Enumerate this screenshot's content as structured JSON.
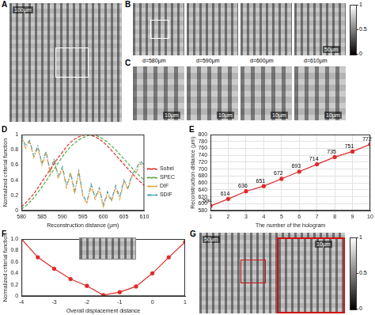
{
  "panels": [
    "A",
    "B",
    "C",
    "D",
    "E",
    "F",
    "G"
  ],
  "images": [
    {
      "panel": "A",
      "scale_bar": "100μm"
    },
    {
      "panel": "B",
      "scale_bar": "50μm"
    },
    {
      "panel": "C",
      "distances": [
        "d=580μm",
        "d=590μm",
        "d=600μm",
        "d=610μm"
      ],
      "scale_bar": "10μm"
    },
    {
      "panel": "G",
      "scale_bars": [
        "50μm",
        "10μm"
      ]
    }
  ],
  "colorbar": {
    "range": [
      0,
      1
    ],
    "ticks": [
      0,
      0.5,
      1
    ]
  },
  "chart_data": [
    {
      "panel": "D",
      "type": "line",
      "xlabel": "Reconstruction distance (μm)",
      "ylabel": "Normalized criterial function",
      "x": [
        580,
        581,
        582,
        583,
        584,
        585,
        586,
        587,
        588,
        589,
        590,
        591,
        592,
        593,
        594,
        595,
        596,
        597,
        598,
        599,
        600,
        601,
        602,
        603,
        604,
        605,
        606,
        607,
        608,
        609,
        610
      ],
      "series": [
        {
          "name": "Sobel",
          "color": "#e02a2a",
          "line_style": "dashed",
          "values": [
            0.05,
            0.1,
            0.16,
            0.22,
            0.3,
            0.38,
            0.46,
            0.54,
            0.62,
            0.7,
            0.77,
            0.84,
            0.9,
            0.94,
            0.97,
            0.99,
            1.0,
            0.99,
            0.97,
            0.94,
            0.9,
            0.85,
            0.79,
            0.73,
            0.67,
            0.61,
            0.55,
            0.49,
            0.43,
            0.38,
            0.33
          ]
        },
        {
          "name": "SPEC",
          "color": "#5aa83c",
          "line_style": "dashed",
          "values": [
            0.02,
            0.06,
            0.11,
            0.17,
            0.24,
            0.31,
            0.39,
            0.47,
            0.55,
            0.63,
            0.71,
            0.78,
            0.84,
            0.89,
            0.93,
            0.96,
            0.98,
            1.0,
            0.99,
            0.97,
            0.94,
            0.9,
            0.85,
            0.8,
            0.74,
            0.68,
            0.62,
            0.56,
            0.5,
            0.45,
            0.4
          ]
        },
        {
          "name": "DIF",
          "color": "#f0a040",
          "line_style": "dashdot",
          "values": [
            0.95,
            0.82,
            0.9,
            0.7,
            0.82,
            0.6,
            0.75,
            0.5,
            0.65,
            0.42,
            0.55,
            0.3,
            0.48,
            0.22,
            0.5,
            0.18,
            0.1,
            0.32,
            0.15,
            0.28,
            0.05,
            0.22,
            0.12,
            0.3,
            0.15,
            0.38,
            0.28,
            0.45,
            0.5,
            0.62,
            0.55
          ]
        },
        {
          "name": "SDIF",
          "color": "#3a9fb0",
          "line_style": "dashdot",
          "values": [
            1.0,
            0.85,
            0.92,
            0.72,
            0.85,
            0.62,
            0.78,
            0.52,
            0.68,
            0.45,
            0.58,
            0.33,
            0.5,
            0.25,
            0.52,
            0.2,
            0.12,
            0.35,
            0.17,
            0.3,
            0.07,
            0.25,
            0.14,
            0.33,
            0.18,
            0.4,
            0.3,
            0.48,
            0.55,
            0.65,
            0.6
          ]
        }
      ],
      "xlim": [
        580,
        610
      ],
      "xticks": [
        580,
        585,
        590,
        595,
        600,
        605,
        610
      ],
      "ylim": [
        0,
        1
      ],
      "yticks": [
        0,
        0.2,
        0.4,
        0.6,
        0.8,
        1
      ],
      "grid": false,
      "legend": "right"
    },
    {
      "panel": "E",
      "type": "line",
      "xlabel": "The number of the hologram",
      "ylabel": "Reconstruction distance (μm)",
      "x": [
        1,
        2,
        3,
        4,
        5,
        6,
        7,
        8,
        9,
        10
      ],
      "series": [
        {
          "name": "Reconstruction distance",
          "color": "#e02a2a",
          "marker": "circle",
          "values": [
            594,
            614,
            636,
            651,
            672,
            693,
            714,
            735,
            751,
            772
          ]
        }
      ],
      "xlim": [
        1,
        10
      ],
      "xticks": [
        1,
        2,
        3,
        4,
        5,
        6,
        7,
        8,
        9,
        10
      ],
      "ylim": [
        580,
        800
      ],
      "yticks": [
        580,
        600,
        620,
        640,
        660,
        680,
        700,
        720,
        740,
        760,
        780,
        800
      ],
      "grid": true,
      "data_labels": true
    },
    {
      "panel": "F",
      "type": "line",
      "xlabel": "Overall displacement distance",
      "ylabel": "Normalized criterial function",
      "x": [
        -4,
        -3.5,
        -3,
        -2.5,
        -2,
        -1.5,
        -1,
        -0.5,
        0,
        0.5,
        1
      ],
      "series": [
        {
          "name": "Normalized criterial function",
          "color": "#e02a2a",
          "marker": "circle",
          "values": [
            1.0,
            0.68,
            0.48,
            0.3,
            0.18,
            0.02,
            0.07,
            0.17,
            0.4,
            0.68,
            0.95
          ]
        }
      ],
      "xlim": [
        -4,
        1
      ],
      "xticks": [
        -4,
        -3,
        -2,
        -1,
        0,
        1
      ],
      "ylim": [
        0,
        1
      ],
      "yticks": [
        0,
        0.2,
        0.4,
        0.6,
        0.8,
        {
          "value": 1,
          "label": "1.0"
        }
      ],
      "grid": false
    }
  ]
}
